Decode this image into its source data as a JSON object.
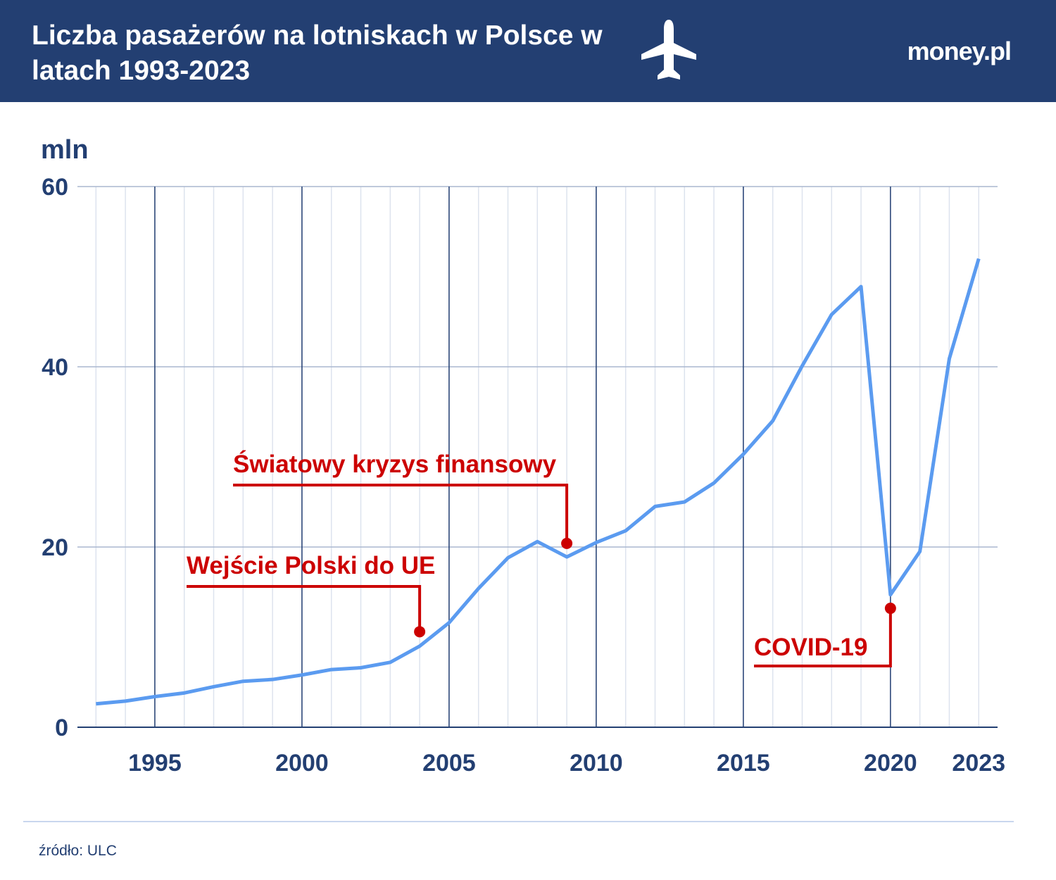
{
  "chart_data": {
    "type": "line",
    "title": "Liczba pasażerów na lotniskach w Polsce w latach 1993-2023",
    "logo": "money.pl",
    "y_label": "mln",
    "source": "źródło: ULC",
    "x": [
      1993,
      1994,
      1995,
      1996,
      1997,
      1998,
      1999,
      2000,
      2001,
      2002,
      2003,
      2004,
      2005,
      2006,
      2007,
      2008,
      2009,
      2010,
      2011,
      2012,
      2013,
      2014,
      2015,
      2016,
      2017,
      2018,
      2019,
      2020,
      2021,
      2022,
      2023
    ],
    "series": [
      {
        "color": "#5b9bf0",
        "values": [
          2.6,
          2.9,
          3.4,
          3.8,
          4.5,
          5.1,
          5.3,
          5.8,
          6.4,
          6.6,
          7.2,
          9.0,
          11.6,
          15.4,
          18.8,
          20.6,
          18.9,
          20.5,
          21.8,
          24.5,
          25.0,
          27.1,
          30.3,
          34.0,
          40.1,
          45.8,
          48.9,
          14.7,
          19.5,
          40.9,
          52.0
        ]
      }
    ],
    "xlim": [
      1992.37,
      2023.64
    ],
    "xticks": [
      1995,
      2000,
      2005,
      2010,
      2015,
      2020,
      2023
    ],
    "ylim": [
      0,
      60
    ],
    "yticks": [
      0,
      20,
      40,
      60
    ],
    "grid": true,
    "annotations": [
      {
        "text": "Wejście Polski do UE",
        "x": 2004,
        "y": 10.6,
        "color": "#cc0000"
      },
      {
        "text": "Światowy kryzys finansowy",
        "x": 2009,
        "y": 20.4,
        "color": "#cc0000"
      },
      {
        "text": "COVID-19",
        "x": 2020,
        "y": 13.2,
        "color": "#cc0000"
      }
    ]
  }
}
